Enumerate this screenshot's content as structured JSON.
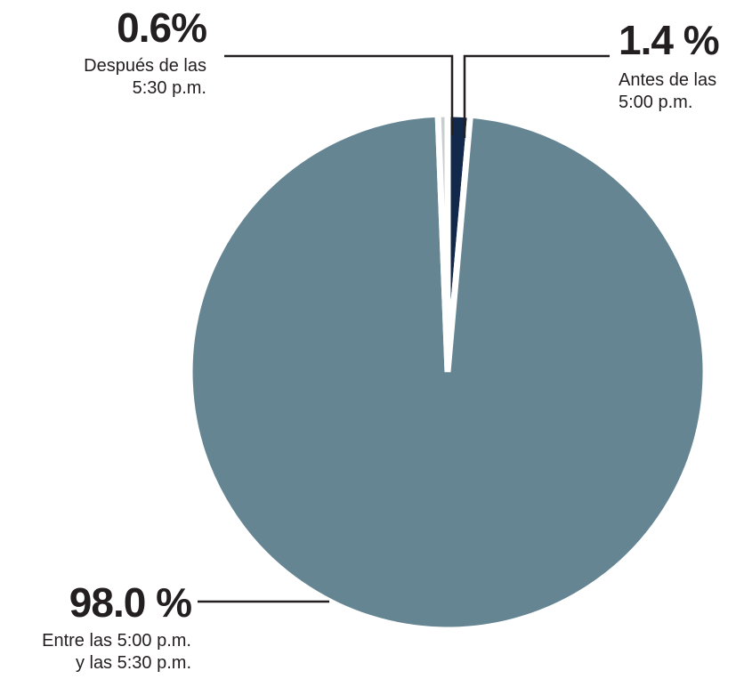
{
  "chart_data": {
    "type": "pie",
    "title": "",
    "slices": [
      {
        "label": "Antes de las\n5:00 p.m.",
        "value": 1.4,
        "value_label": "1.4 %",
        "color": "#13294b"
      },
      {
        "label": "Entre las 5:00 p.m.\ny las 5:30 p.m.",
        "value": 98.0,
        "value_label": "98.0 %",
        "color": "#668593"
      },
      {
        "label": "Después de las\n5:30 p.m.",
        "value": 0.6,
        "value_label": "0.6%",
        "color": "#c9cdd0"
      }
    ],
    "start_angle": "12 o'clock",
    "direction": "clockwise",
    "legend": "none",
    "leader_line_color": "#231f20"
  }
}
